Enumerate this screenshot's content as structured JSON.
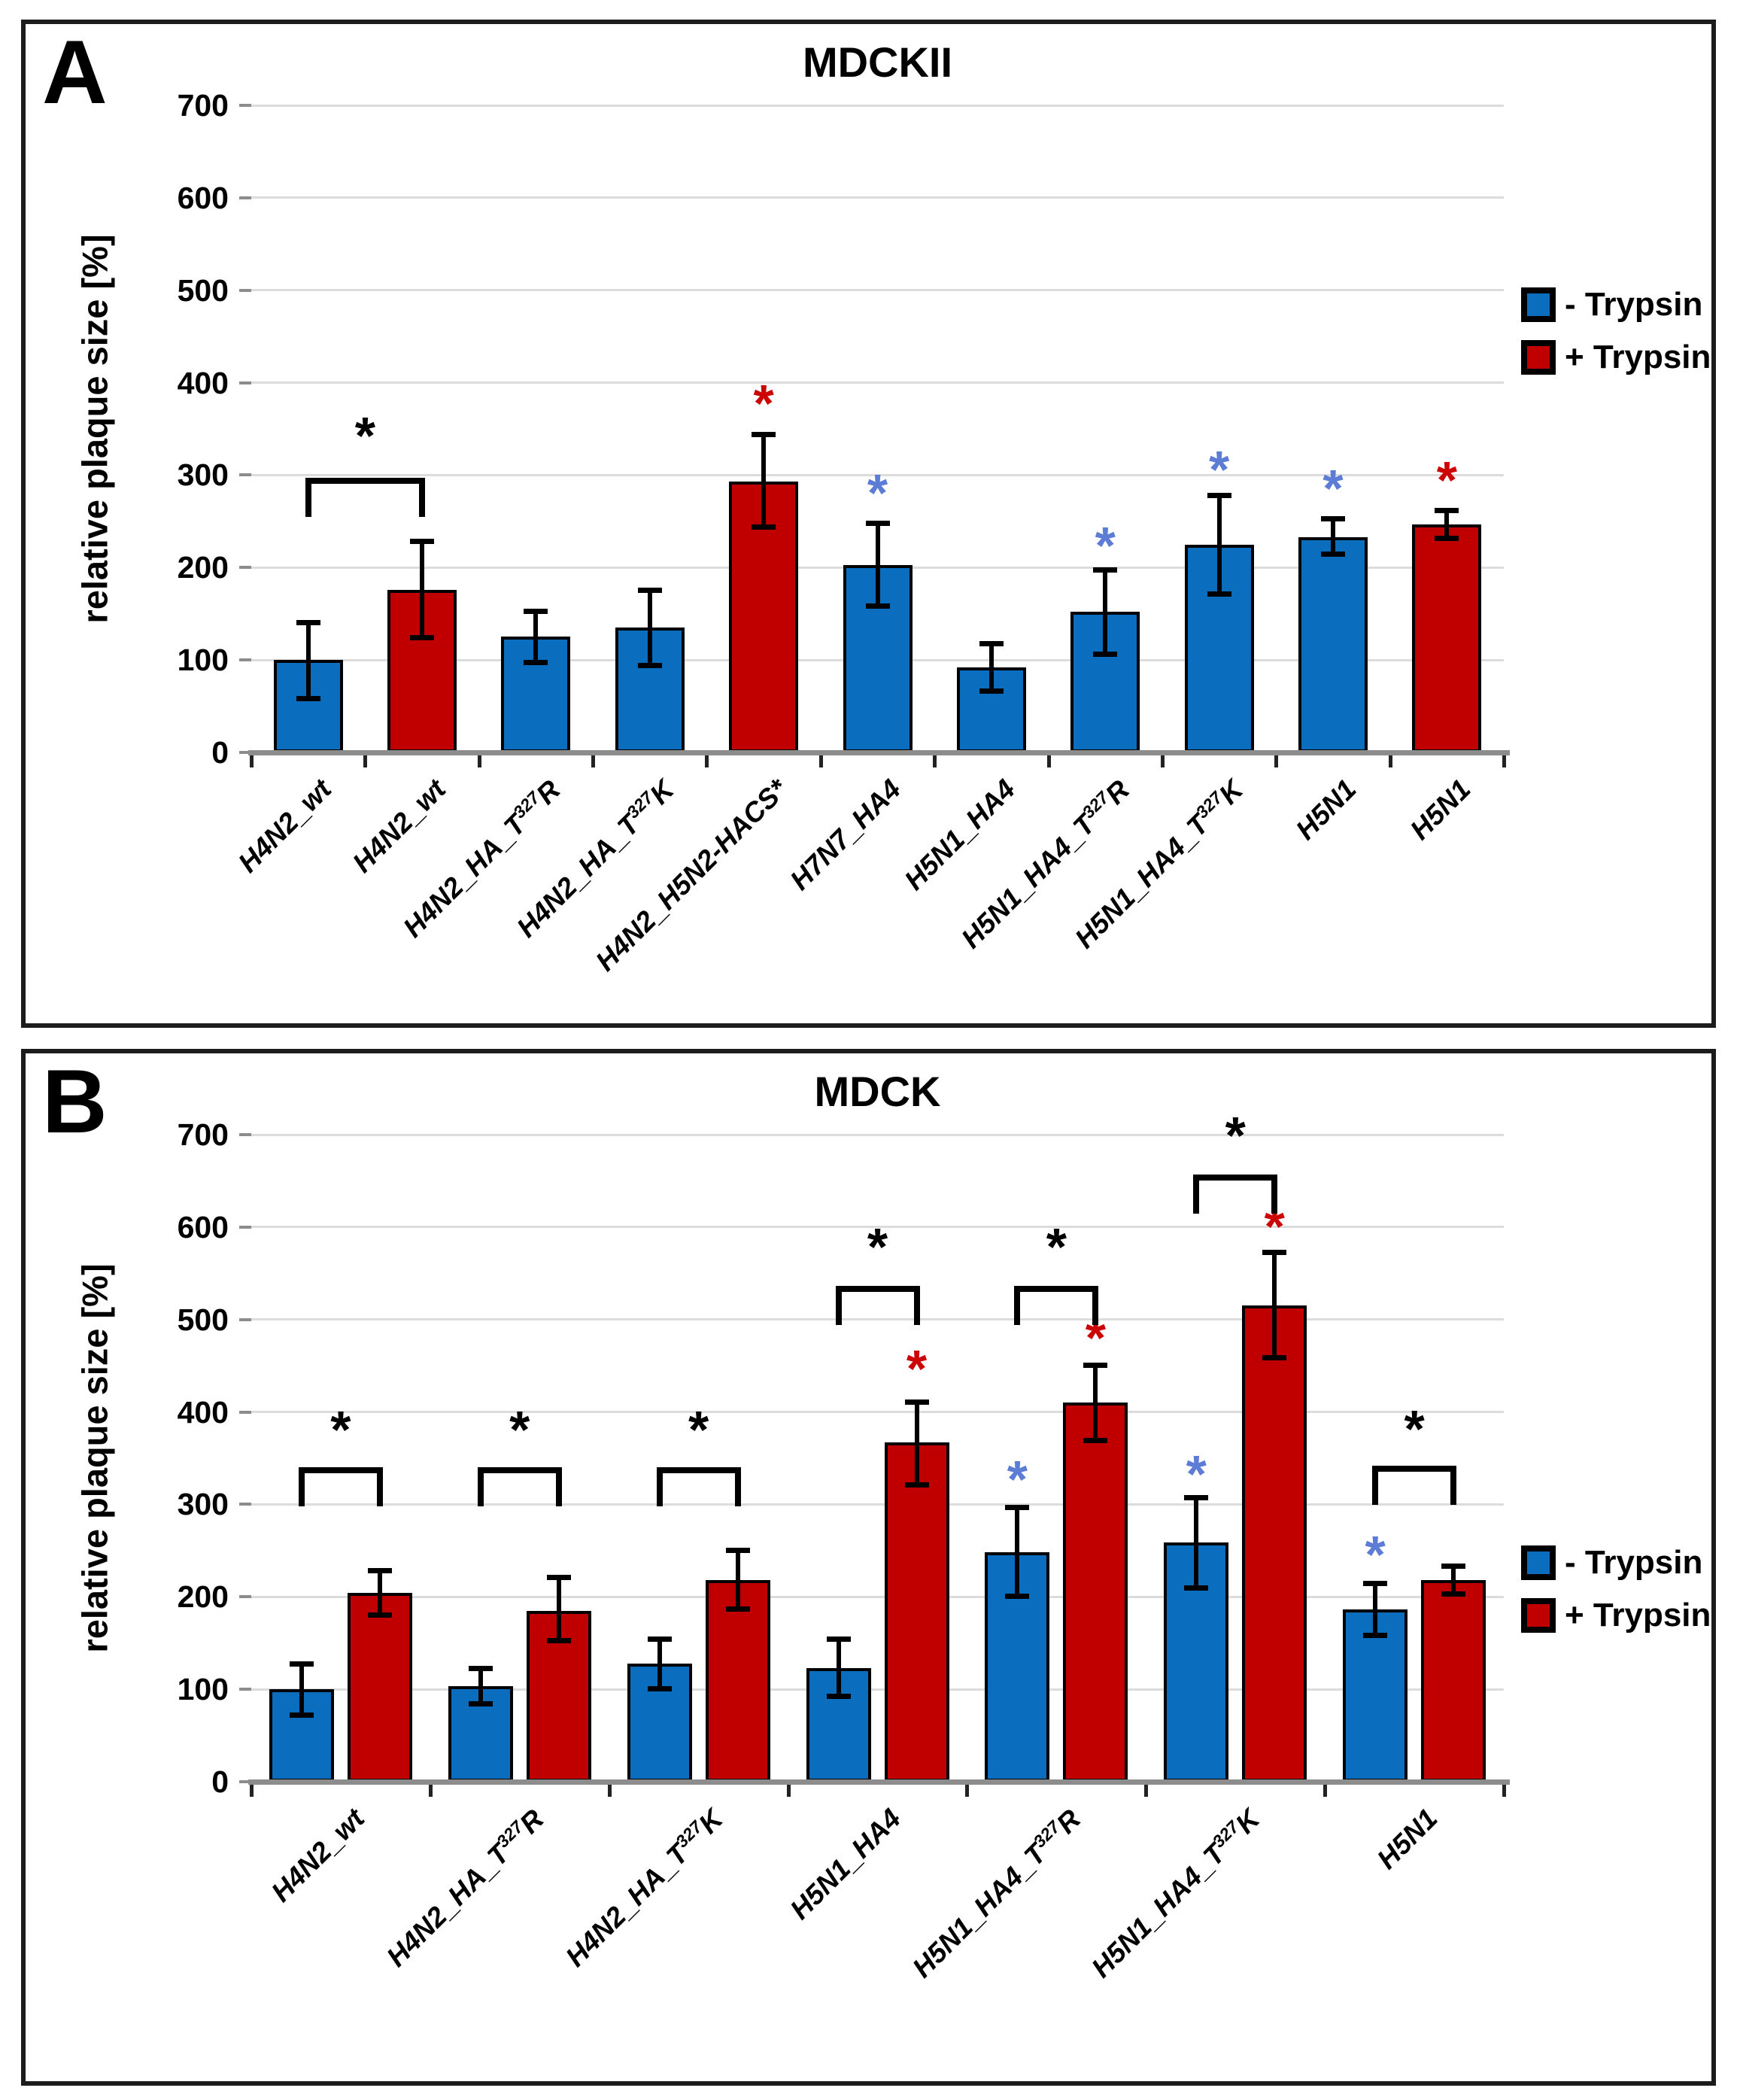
{
  "figure": {
    "legend": {
      "minus_label": "- Trypsin",
      "plus_label": "+ Trypsin"
    },
    "colors": {
      "minus_bar": "#0B6DBE",
      "plus_bar": "#C00000",
      "blue_asterisk": "#5C7CD6",
      "red_asterisk": "#CC0505",
      "black_asterisk": "#000000",
      "gridline": "#DCDCDC",
      "baseline": "#8C8C8C",
      "tick": "#222222"
    }
  },
  "chart_data": [
    {
      "panel": "A",
      "type": "bar",
      "title": "MDCKII",
      "ylabel": "relative plaque size [%]",
      "ylim": [
        0,
        700
      ],
      "yticks": [
        0,
        100,
        200,
        300,
        400,
        500,
        600,
        700
      ],
      "grid": true,
      "legend_position": "right",
      "series_legend": [
        "- Trypsin",
        "+ Trypsin"
      ],
      "groups": [
        {
          "label": "H4N2_wt",
          "bars": [
            {
              "series": "- Trypsin",
              "value": 100,
              "err_low": 58,
              "err_high": 141
            }
          ]
        },
        {
          "label": "H4N2_wt",
          "bars": [
            {
              "series": "+ Trypsin",
              "value": 176,
              "err_low": 124,
              "err_high": 229
            }
          ]
        },
        {
          "label": "H4N2_HA_T^327^R",
          "bars": [
            {
              "series": "- Trypsin",
              "value": 125,
              "err_low": 97,
              "err_high": 153
            }
          ]
        },
        {
          "label": "H4N2_HA_T^327^K",
          "bars": [
            {
              "series": "- Trypsin",
              "value": 135,
              "err_low": 94,
              "err_high": 176
            }
          ]
        },
        {
          "label": "H4N2_H5N2-HACS*",
          "bars": [
            {
              "series": "+ Trypsin",
              "value": 293,
              "err_low": 243,
              "err_high": 344,
              "star": {
                "color": "red",
                "y": 378
              }
            }
          ]
        },
        {
          "label": "H7N7_HA4",
          "bars": [
            {
              "series": "- Trypsin",
              "value": 203,
              "err_low": 158,
              "err_high": 248,
              "star": {
                "color": "blue",
                "y": 281
              }
            }
          ]
        },
        {
          "label": "H5N1_HA4",
          "bars": [
            {
              "series": "- Trypsin",
              "value": 92,
              "err_low": 66,
              "err_high": 118
            }
          ]
        },
        {
          "label": "H5N1_HA4_T^327^R",
          "bars": [
            {
              "series": "- Trypsin",
              "value": 152,
              "err_low": 106,
              "err_high": 198,
              "star": {
                "color": "blue",
                "y": 224
              }
            }
          ]
        },
        {
          "label": "H5N1_HA4_T^327^K",
          "bars": [
            {
              "series": "- Trypsin",
              "value": 225,
              "err_low": 171,
              "err_high": 278,
              "star": {
                "color": "blue",
                "y": 306
              }
            }
          ]
        },
        {
          "label": "H5N1",
          "bars": [
            {
              "series": "- Trypsin",
              "value": 233,
              "err_low": 214,
              "err_high": 253,
              "star": {
                "color": "blue",
                "y": 286
              }
            }
          ]
        },
        {
          "label": "H5N1",
          "bars": [
            {
              "series": "+ Trypsin",
              "value": 247,
              "err_low": 231,
              "err_high": 262,
              "star": {
                "color": "red",
                "y": 295
              }
            }
          ]
        }
      ],
      "brackets": [
        {
          "from": [
            0,
            0
          ],
          "to": [
            1,
            0
          ],
          "line_y": 297,
          "star_y": 343
        }
      ]
    },
    {
      "panel": "B",
      "type": "bar",
      "title": "MDCK",
      "ylabel": "relative plaque size [%]",
      "ylim": [
        0,
        700
      ],
      "yticks": [
        0,
        100,
        200,
        300,
        400,
        500,
        600,
        700
      ],
      "grid": true,
      "legend_position": "right",
      "series_legend": [
        "- Trypsin",
        "+ Trypsin"
      ],
      "groups": [
        {
          "label": "H4N2_wt",
          "bars": [
            {
              "series": "- Trypsin",
              "value": 100,
              "err_low": 72,
              "err_high": 128
            },
            {
              "series": "+ Trypsin",
              "value": 204,
              "err_low": 180,
              "err_high": 229
            }
          ]
        },
        {
          "label": "H4N2_HA_T^327^R",
          "bars": [
            {
              "series": "- Trypsin",
              "value": 103,
              "err_low": 84,
              "err_high": 123
            },
            {
              "series": "+ Trypsin",
              "value": 185,
              "err_low": 152,
              "err_high": 221
            }
          ]
        },
        {
          "label": "H4N2_HA_T^327^K",
          "bars": [
            {
              "series": "- Trypsin",
              "value": 128,
              "err_low": 100,
              "err_high": 155
            },
            {
              "series": "+ Trypsin",
              "value": 218,
              "err_low": 186,
              "err_high": 251
            }
          ]
        },
        {
          "label": "H5N1_HA4",
          "bars": [
            {
              "series": "- Trypsin",
              "value": 123,
              "err_low": 92,
              "err_high": 155
            },
            {
              "series": "+ Trypsin",
              "value": 367,
              "err_low": 321,
              "err_high": 411,
              "star": {
                "color": "red",
                "y": 447
              }
            }
          ]
        },
        {
          "label": "H5N1_HA4_T^327^R",
          "bars": [
            {
              "series": "- Trypsin",
              "value": 248,
              "err_low": 200,
              "err_high": 297,
              "star": {
                "color": "blue",
                "y": 327
              }
            },
            {
              "series": "+ Trypsin",
              "value": 410,
              "err_low": 369,
              "err_high": 451,
              "star": {
                "color": "red",
                "y": 480
              }
            }
          ]
        },
        {
          "label": "H5N1_HA4_T^327^K",
          "bars": [
            {
              "series": "- Trypsin",
              "value": 259,
              "err_low": 209,
              "err_high": 308,
              "star": {
                "color": "blue",
                "y": 333
              }
            },
            {
              "series": "+ Trypsin",
              "value": 515,
              "err_low": 458,
              "err_high": 573,
              "star": {
                "color": "red",
                "y": 601
              }
            }
          ]
        },
        {
          "label": "H5N1",
          "bars": [
            {
              "series": "- Trypsin",
              "value": 186,
              "err_low": 158,
              "err_high": 215,
              "star": {
                "color": "blue",
                "y": 246
              }
            },
            {
              "series": "+ Trypsin",
              "value": 218,
              "err_low": 203,
              "err_high": 234
            }
          ]
        }
      ],
      "brackets": [
        {
          "from": [
            0,
            0
          ],
          "to": [
            0,
            1
          ],
          "line_y": 340,
          "star_y": 381
        },
        {
          "from": [
            1,
            0
          ],
          "to": [
            1,
            1
          ],
          "line_y": 340,
          "star_y": 381
        },
        {
          "from": [
            2,
            0
          ],
          "to": [
            2,
            1
          ],
          "line_y": 340,
          "star_y": 381
        },
        {
          "from": [
            3,
            0
          ],
          "to": [
            3,
            1
          ],
          "line_y": 536,
          "star_y": 579
        },
        {
          "from": [
            4,
            0
          ],
          "to": [
            4,
            1
          ],
          "line_y": 536,
          "star_y": 579
        },
        {
          "from": [
            5,
            0
          ],
          "to": [
            5,
            1
          ],
          "line_y": 657,
          "star_y": 699
        },
        {
          "from": [
            6,
            0
          ],
          "to": [
            6,
            1
          ],
          "line_y": 342,
          "star_y": 382
        }
      ]
    }
  ]
}
